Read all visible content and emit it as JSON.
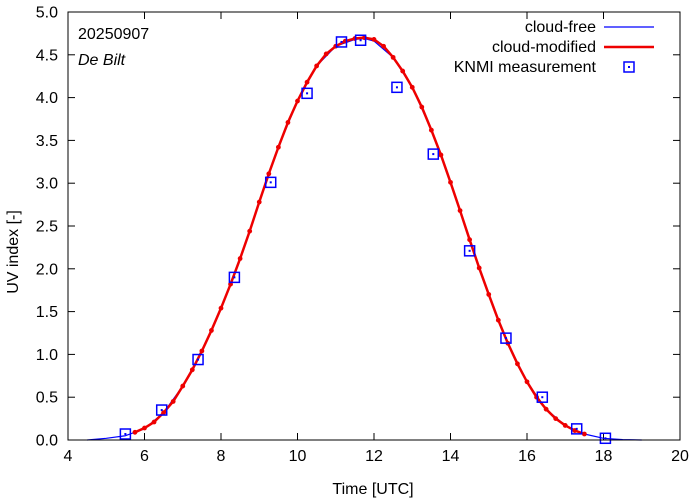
{
  "chart_data": {
    "type": "line",
    "date_label": "20250907",
    "location_label": "De Bilt",
    "xlabel": "Time  [UTC]",
    "ylabel": "UV index  [-]",
    "xlim": [
      4,
      20
    ],
    "ylim": [
      0,
      5
    ],
    "x_ticks": [
      4,
      6,
      8,
      10,
      12,
      14,
      16,
      18,
      20
    ],
    "x_tick_labels": [
      "4",
      "6",
      "8",
      "10",
      "12",
      "14",
      "16",
      "18",
      "20"
    ],
    "y_ticks": [
      0,
      0.5,
      1,
      1.5,
      2,
      2.5,
      3,
      3.5,
      4,
      4.5,
      5
    ],
    "y_tick_labels": [
      "0.0",
      "0.5",
      "1.0",
      "1.5",
      "2.0",
      "2.5",
      "3.0",
      "3.5",
      "4.0",
      "4.5",
      "5.0"
    ],
    "legend_position": "top-right",
    "series": [
      {
        "name": "cloud-free",
        "style": "line",
        "color": "#0000ff",
        "x": [
          4.5,
          5,
          5.5,
          6,
          6.5,
          7,
          7.5,
          8,
          8.5,
          9,
          9.5,
          10,
          10.5,
          11,
          11.5,
          11.75,
          12,
          12.5,
          13,
          13.5,
          14,
          14.5,
          15,
          15.5,
          16,
          16.5,
          17,
          17.5,
          18,
          18.5,
          19
        ],
        "values": [
          0.0,
          0.02,
          0.05,
          0.13,
          0.32,
          0.63,
          1.04,
          1.54,
          2.12,
          2.78,
          3.42,
          3.96,
          4.37,
          4.6,
          4.68,
          4.69,
          4.66,
          4.47,
          4.12,
          3.62,
          3.01,
          2.34,
          1.7,
          1.13,
          0.68,
          0.36,
          0.17,
          0.07,
          0.02,
          0.005,
          0.0
        ]
      },
      {
        "name": "cloud-modified",
        "style": "line-dots",
        "color": "#ee0000",
        "x": [
          5.75,
          6,
          6.25,
          6.5,
          6.75,
          7,
          7.25,
          7.5,
          7.75,
          8,
          8.25,
          8.5,
          8.75,
          9,
          9.25,
          9.5,
          9.75,
          10,
          10.25,
          10.5,
          10.75,
          11,
          11.25,
          11.5,
          11.75,
          12,
          12.25,
          12.5,
          12.75,
          13,
          13.25,
          13.5,
          13.75,
          14,
          14.25,
          14.5,
          14.75,
          15,
          15.25,
          15.5,
          15.75,
          16,
          16.25,
          16.5,
          16.75,
          17,
          17.25,
          17.5
        ],
        "values": [
          0.09,
          0.14,
          0.21,
          0.32,
          0.45,
          0.63,
          0.82,
          1.04,
          1.28,
          1.54,
          1.82,
          2.12,
          2.44,
          2.78,
          3.11,
          3.42,
          3.71,
          3.96,
          4.18,
          4.37,
          4.51,
          4.6,
          4.66,
          4.69,
          4.7,
          4.68,
          4.6,
          4.47,
          4.31,
          4.12,
          3.89,
          3.62,
          3.33,
          3.01,
          2.68,
          2.34,
          2.01,
          1.7,
          1.4,
          1.13,
          0.89,
          0.68,
          0.5,
          0.36,
          0.25,
          0.17,
          0.11,
          0.07
        ]
      },
      {
        "name": "KNMI measurement",
        "style": "markers",
        "color": "#0000ff",
        "x": [
          5.5,
          6.45,
          7.4,
          8.35,
          9.3,
          10.25,
          11.15,
          11.65,
          12.6,
          13.55,
          14.5,
          15.45,
          16.4,
          17.3,
          18.05
        ],
        "values": [
          0.07,
          0.35,
          0.94,
          1.9,
          3.01,
          4.05,
          4.65,
          4.67,
          4.12,
          3.34,
          2.21,
          1.19,
          0.5,
          0.13,
          0.02
        ]
      }
    ]
  }
}
